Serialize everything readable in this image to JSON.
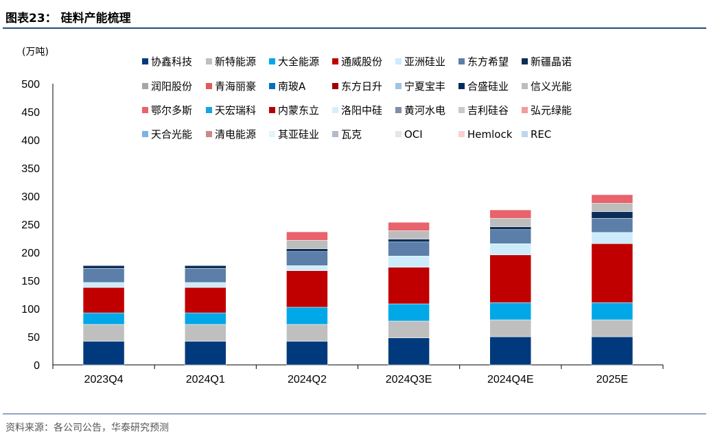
{
  "header": {
    "title": "图表23：  硅料产能梳理"
  },
  "footer": {
    "source": "资料来源：各公司公告，华泰研究预测"
  },
  "chart_data": {
    "type": "bar",
    "stacked": true,
    "title": "硅料产能梳理",
    "ylabel": "(万吨)",
    "ylim": [
      0,
      500
    ],
    "yticks": [
      0,
      50,
      100,
      150,
      200,
      250,
      300,
      350,
      400,
      450,
      500
    ],
    "categories": [
      "2023Q4",
      "2024Q1",
      "2024Q2",
      "2024Q3E",
      "2024Q4E",
      "2025E"
    ],
    "series": [
      {
        "name": "协鑫科技",
        "color": "#003a7d",
        "values": [
          42,
          42,
          42,
          48,
          50,
          50
        ]
      },
      {
        "name": "新特能源",
        "color": "#bfbfbf",
        "values": [
          30,
          30,
          30,
          30,
          30,
          30
        ]
      },
      {
        "name": "大全能源",
        "color": "#00a8e8",
        "values": [
          20.5,
          20.5,
          30.5,
          30.5,
          30.5,
          30.5
        ]
      },
      {
        "name": "通威股份",
        "color": "#c00000",
        "values": [
          45,
          45,
          65,
          65,
          85,
          105
        ]
      },
      {
        "name": "亚洲硅业",
        "color": "#ccecfc",
        "values": [
          9,
          9,
          9,
          20,
          20,
          20
        ]
      },
      {
        "name": "东方希望",
        "color": "#5b7fa8",
        "values": [
          25,
          25,
          25,
          25,
          25,
          25
        ]
      },
      {
        "name": "新疆晶诺",
        "color": "#0b2e59",
        "values": [
          5,
          5,
          5,
          5,
          5,
          12
        ]
      },
      {
        "name": "润阳股份",
        "color": "#a6a6a6",
        "values": [
          0,
          0,
          0,
          0,
          0,
          0
        ]
      },
      {
        "name": "青海丽豪",
        "color": "#e05a5a",
        "values": [
          0,
          0,
          0,
          0,
          0,
          0
        ]
      },
      {
        "name": "南玻A",
        "color": "#0070c0",
        "values": [
          0,
          0,
          0,
          0,
          0,
          0
        ]
      },
      {
        "name": "东方日升",
        "color": "#9b0000",
        "values": [
          0,
          0,
          0,
          0,
          0,
          0
        ]
      },
      {
        "name": "宁夏宝丰",
        "color": "#9dc3e6",
        "values": [
          0,
          0,
          0,
          0,
          0,
          0
        ]
      },
      {
        "name": "合盛硅业",
        "color": "#002a5e",
        "values": [
          0,
          0,
          0,
          0,
          0,
          0
        ]
      },
      {
        "name": "信义光能",
        "color": "#bdbdbd",
        "values": [
          0,
          0,
          15,
          15,
          15,
          15
        ]
      },
      {
        "name": "鄂尔多斯",
        "color": "#e8636b",
        "values": [
          0,
          0,
          15,
          15,
          15,
          15
        ]
      },
      {
        "name": "天宏瑞科",
        "color": "#1aa3e0",
        "values": [
          0,
          0,
          0,
          0,
          0,
          0
        ]
      },
      {
        "name": "内蒙东立",
        "color": "#b50000",
        "values": [
          0,
          0,
          0,
          0,
          0,
          0
        ]
      },
      {
        "name": "洛阳中硅",
        "color": "#d6f0fb",
        "values": [
          0,
          0,
          0,
          0,
          0,
          0
        ]
      },
      {
        "name": "黄河水电",
        "color": "#7f8fa6",
        "values": [
          0,
          0,
          0,
          0,
          0,
          0
        ]
      },
      {
        "name": "吉利硅谷",
        "color": "#c9c9c9",
        "values": [
          0,
          0,
          0,
          0,
          0,
          0
        ]
      },
      {
        "name": "弘元绿能",
        "color": "#f29b9b",
        "values": [
          0,
          0,
          0,
          0,
          0,
          0
        ]
      },
      {
        "name": "天合光能",
        "color": "#7fb2e5",
        "values": [
          0,
          0,
          0,
          0,
          0,
          0
        ]
      },
      {
        "name": "清电能源",
        "color": "#c98a8a",
        "values": [
          0,
          0,
          0,
          0,
          0,
          0
        ]
      },
      {
        "name": "其亚硅业",
        "color": "#e3f4fd",
        "values": [
          0,
          0,
          0,
          0,
          0,
          0
        ]
      },
      {
        "name": "瓦克",
        "color": "#b4bccb",
        "values": [
          0,
          0,
          0,
          0,
          0,
          0
        ]
      },
      {
        "name": "OCI",
        "color": "#e6e6e6",
        "values": [
          0,
          0,
          0,
          0,
          0,
          0
        ]
      },
      {
        "name": "Hemlock",
        "color": "#fbd0d0",
        "values": [
          0,
          0,
          0,
          0,
          0,
          0
        ]
      },
      {
        "name": "REC",
        "color": "#bcd7ef",
        "values": [
          0,
          0,
          0,
          0,
          0,
          0
        ]
      }
    ]
  }
}
